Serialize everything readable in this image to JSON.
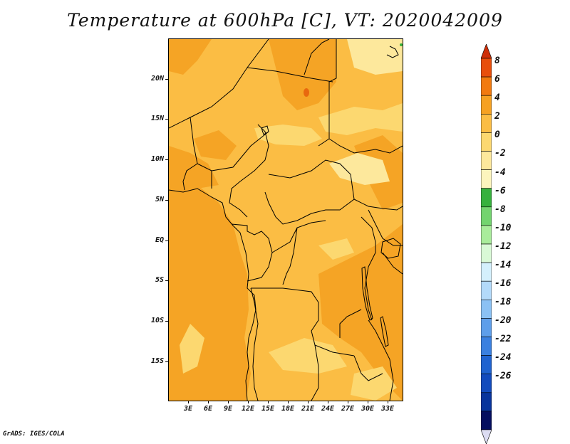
{
  "title": "Temperature at 600hPa [C], VT: 2020042009",
  "credit": "GrADS: IGES/COLA",
  "map": {
    "lon_range": [
      0,
      35
    ],
    "lat_range": [
      -20,
      24
    ],
    "lat_ticks": [
      {
        "value": 20,
        "label": "20N"
      },
      {
        "value": 15,
        "label": "15N"
      },
      {
        "value": 10,
        "label": "10N"
      },
      {
        "value": 5,
        "label": "5N"
      },
      {
        "value": 0,
        "label": "EQ"
      },
      {
        "value": -5,
        "label": "5S"
      },
      {
        "value": -10,
        "label": "10S"
      },
      {
        "value": -15,
        "label": "15S"
      }
    ],
    "lon_ticks": [
      {
        "value": 3,
        "label": "3E"
      },
      {
        "value": 6,
        "label": "6E"
      },
      {
        "value": 9,
        "label": "9E"
      },
      {
        "value": 12,
        "label": "12E"
      },
      {
        "value": 15,
        "label": "15E"
      },
      {
        "value": 18,
        "label": "18E"
      },
      {
        "value": 21,
        "label": "21E"
      },
      {
        "value": 24,
        "label": "24E"
      },
      {
        "value": 27,
        "label": "27E"
      },
      {
        "value": 30,
        "label": "30E"
      },
      {
        "value": 33,
        "label": "33E"
      }
    ]
  },
  "colorbar": {
    "labels": [
      "8",
      "6",
      "4",
      "2",
      "0",
      "-2",
      "-4",
      "-6",
      "-8",
      "-10",
      "-12",
      "-14",
      "-16",
      "-18",
      "-20",
      "-22",
      "-24",
      "-26"
    ],
    "colors": [
      "#ce2e08",
      "#e84e0c",
      "#f27a0f",
      "#f6a122",
      "#fbbd44",
      "#fcd870",
      "#fde89c",
      "#fcf5bd",
      "#36b13d",
      "#73d46f",
      "#a9ec9b",
      "#d9f9d6",
      "#d4f0fc",
      "#b3dafa",
      "#8bc1f4",
      "#5e9eea",
      "#3a80e0",
      "#1f63d0",
      "#124bbd",
      "#08349c",
      "#050e5f",
      "#dcdcf2"
    ]
  },
  "fill_colors": {
    "orange": "#f5a425",
    "light_orange": "#fbbd44",
    "pale_yellow": "#fcd870",
    "yellow": "#fde89c",
    "hot": "#e8680e"
  }
}
